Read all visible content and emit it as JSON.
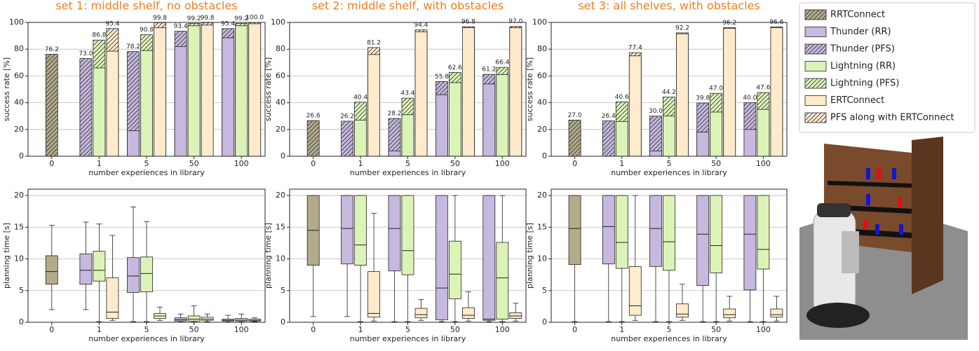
{
  "legend": [
    {
      "name": "RRTConnect",
      "color": "#b3ab8c",
      "hatch": true
    },
    {
      "name": "Thunder (RR)",
      "color": "#c6b8de",
      "hatch": false
    },
    {
      "name": "Thunder (PFS)",
      "color": "#c6b8de",
      "hatch": true
    },
    {
      "name": "Lightning (RR)",
      "color": "#dcf3b7",
      "hatch": false
    },
    {
      "name": "Lightning (PFS)",
      "color": "#dcf3b7",
      "hatch": true
    },
    {
      "name": "ERTConnect",
      "color": "#fdebcb",
      "hatch": false
    },
    {
      "name": "PFS along with ERTConnect",
      "color": "#fdebcb",
      "hatch": true
    }
  ],
  "chart_data": [
    {
      "type": "bar",
      "title": "set 1: middle shelf, no obstacles",
      "x_label": "number experiences in library",
      "y_label": "success rate [%]",
      "categories": [
        "0",
        "1",
        "5",
        "50",
        "100"
      ],
      "ylim": [
        0,
        100
      ],
      "yticks": [
        0,
        20,
        40,
        60,
        80,
        100
      ],
      "grid": true,
      "series": [
        {
          "values": [
            76.2,
            null,
            null,
            null,
            null
          ],
          "value_labels": [
            "76.2",
            null,
            null,
            null,
            null
          ]
        },
        {
          "values": [
            null,
            0,
            19,
            82,
            88.5
          ]
        },
        {
          "values": [
            null,
            73.0,
            78.2,
            93.4,
            95.4
          ],
          "value_labels": [
            null,
            "73.0",
            "78.2",
            "93.4",
            "95.4"
          ]
        },
        {
          "values": [
            null,
            66,
            79,
            97.5,
            97.5
          ]
        },
        {
          "values": [
            null,
            86.8,
            90.8,
            99.2,
            99.2
          ],
          "value_labels": [
            null,
            "86.8",
            "90.8",
            "99.2",
            "99.2"
          ]
        },
        {
          "values": [
            null,
            78.5,
            96,
            98,
            99
          ]
        },
        {
          "values": [
            null,
            95.4,
            99.8,
            99.8,
            100.0
          ],
          "value_labels": [
            null,
            "95.4",
            "99.8",
            "99.8",
            "100.0"
          ]
        }
      ]
    },
    {
      "type": "bar",
      "title": "set 2: middle shelf, with obstacles",
      "x_label": "number experiences in library",
      "y_label": "success rate [%]",
      "categories": [
        "0",
        "1",
        "5",
        "50",
        "100"
      ],
      "ylim": [
        0,
        100
      ],
      "yticks": [
        0,
        20,
        40,
        60,
        80,
        100
      ],
      "grid": true,
      "series": [
        {
          "values": [
            26.6,
            null,
            null,
            null,
            null
          ],
          "value_labels": [
            "26.6",
            null,
            null,
            null,
            null
          ]
        },
        {
          "values": [
            null,
            0,
            4,
            46,
            54
          ]
        },
        {
          "values": [
            null,
            26.2,
            28.2,
            55.8,
            61.2
          ],
          "value_labels": [
            null,
            "26.2",
            "28.2",
            "55.8",
            "61.2"
          ]
        },
        {
          "values": [
            null,
            27,
            31,
            55,
            61
          ]
        },
        {
          "values": [
            null,
            40.4,
            43.4,
            62.6,
            66.4
          ],
          "value_labels": [
            null,
            "40.4",
            "43.4",
            "62.6",
            "66.4"
          ]
        },
        {
          "values": [
            null,
            76,
            93,
            96,
            96
          ]
        },
        {
          "values": [
            null,
            81.2,
            94.4,
            96.8,
            97.0
          ],
          "value_labels": [
            null,
            "81.2",
            "94.4",
            "96.8",
            "97.0"
          ]
        }
      ]
    },
    {
      "type": "bar",
      "title": "set 3: all shelves, with obstacles",
      "x_label": "number experiences in library",
      "y_label": "success rate [%]",
      "categories": [
        "0",
        "1",
        "5",
        "50",
        "100"
      ],
      "ylim": [
        0,
        100
      ],
      "yticks": [
        0,
        20,
        40,
        60,
        80,
        100
      ],
      "grid": true,
      "series": [
        {
          "values": [
            27.0,
            null,
            null,
            null,
            null
          ],
          "value_labels": [
            "27.0",
            null,
            null,
            null,
            null
          ]
        },
        {
          "values": [
            null,
            0,
            4,
            18,
            20
          ]
        },
        {
          "values": [
            null,
            26.4,
            30.0,
            39.8,
            40.0
          ],
          "value_labels": [
            null,
            "26.4",
            "30.0",
            "39.8",
            "40.0"
          ]
        },
        {
          "values": [
            null,
            26,
            30,
            33,
            35
          ]
        },
        {
          "values": [
            null,
            40.6,
            44.2,
            47.0,
            47.6
          ],
          "value_labels": [
            null,
            "40.6",
            "44.2",
            "47.0",
            "47.6"
          ]
        },
        {
          "values": [
            null,
            75,
            91.5,
            95.5,
            96
          ]
        },
        {
          "values": [
            null,
            77.4,
            92.2,
            96.2,
            96.6
          ],
          "value_labels": [
            null,
            "77.4",
            "92.2",
            "96.2",
            "96.6"
          ]
        }
      ]
    },
    {
      "type": "box",
      "x_label": "number experiences in library",
      "y_label": "planning time [s]",
      "categories": [
        "0",
        "1",
        "5",
        "50",
        "100"
      ],
      "ylim": [
        0,
        21
      ],
      "yticks": [
        0,
        5,
        10,
        15,
        20
      ],
      "grid": true,
      "series": [
        {
          "color": "#b3ab8c",
          "values": [
            [
              2,
              6,
              8,
              10.5,
              15.3
            ],
            null,
            null,
            null,
            null
          ]
        },
        {
          "color": "#c6b8de",
          "values": [
            null,
            [
              2,
              6,
              8.2,
              10.8,
              15.8
            ],
            [
              0.1,
              4.7,
              7.3,
              10.2,
              18.2
            ],
            [
              0.05,
              0.2,
              0.4,
              0.7,
              1.3
            ],
            [
              0.05,
              0.2,
              0.3,
              0.5,
              1.1
            ]
          ]
        },
        {
          "color": "#dcf3b7",
          "values": [
            null,
            [
              0.1,
              6.5,
              8.2,
              11.2,
              15.5
            ],
            [
              0.1,
              4.8,
              7.7,
              10.3,
              15.9
            ],
            [
              0.05,
              0.2,
              0.5,
              1.0,
              2.6
            ],
            [
              0.05,
              0.2,
              0.35,
              0.6,
              1.3
            ]
          ]
        },
        {
          "color": "#fdebcb",
          "values": [
            null,
            [
              0.3,
              0.6,
              1.6,
              7,
              13.7
            ],
            [
              0.3,
              0.6,
              1.0,
              1.4,
              2.4
            ],
            [
              0.1,
              0.3,
              0.5,
              0.8,
              1.3
            ],
            [
              0.1,
              0.2,
              0.3,
              0.5,
              0.7
            ]
          ]
        }
      ]
    },
    {
      "type": "box",
      "x_label": "number experiences in library",
      "y_label": "planning time [s]",
      "categories": [
        "0",
        "1",
        "5",
        "50",
        "100"
      ],
      "ylim": [
        0,
        21
      ],
      "yticks": [
        0,
        5,
        10,
        15,
        20
      ],
      "grid": true,
      "series": [
        {
          "color": "#b3ab8c",
          "values": [
            [
              0.9,
              9,
              14.5,
              20,
              20
            ],
            null,
            null,
            null,
            null
          ]
        },
        {
          "color": "#c6b8de",
          "values": [
            null,
            [
              0.9,
              9.2,
              14.8,
              20,
              20
            ],
            [
              0.1,
              8.1,
              14.8,
              20,
              20
            ],
            [
              0.1,
              0.4,
              5.4,
              20,
              20
            ],
            [
              0.1,
              0.3,
              0.5,
              20,
              20
            ]
          ]
        },
        {
          "color": "#dcf3b7",
          "values": [
            null,
            [
              0.1,
              9,
              12.2,
              20,
              20
            ],
            [
              0.1,
              7.5,
              11.3,
              20,
              20
            ],
            [
              0.1,
              3.7,
              7.6,
              12.8,
              20
            ],
            [
              0.1,
              0.5,
              7,
              12.6,
              20
            ]
          ]
        },
        {
          "color": "#fdebcb",
          "values": [
            null,
            [
              0.2,
              0.8,
              1.4,
              8,
              17.2
            ],
            [
              0.3,
              0.7,
              1.2,
              2.2,
              3.6
            ],
            [
              0.2,
              0.6,
              1.1,
              2.3,
              4.8
            ],
            [
              0.2,
              0.6,
              1.0,
              1.5,
              3.0
            ]
          ]
        }
      ]
    },
    {
      "type": "box",
      "x_label": "number experiences in library",
      "y_label": "planning time [s]",
      "categories": [
        "0",
        "1",
        "5",
        "50",
        "100"
      ],
      "ylim": [
        0,
        21
      ],
      "yticks": [
        0,
        5,
        10,
        15,
        20
      ],
      "grid": true,
      "series": [
        {
          "color": "#b3ab8c",
          "values": [
            [
              0.1,
              9.1,
              14.8,
              20,
              20
            ],
            null,
            null,
            null,
            null
          ]
        },
        {
          "color": "#c6b8de",
          "values": [
            null,
            [
              0.1,
              9.2,
              15.1,
              20,
              20
            ],
            [
              0.1,
              8.8,
              14.8,
              20,
              20
            ],
            [
              0.1,
              5.8,
              13.9,
              20,
              20
            ],
            [
              0.1,
              5.1,
              13.9,
              20,
              20
            ]
          ]
        },
        {
          "color": "#dcf3b7",
          "values": [
            null,
            [
              0.1,
              8.5,
              12.6,
              20,
              20
            ],
            [
              0.1,
              8.2,
              12.7,
              20,
              20
            ],
            [
              0.1,
              7.8,
              12.1,
              20,
              20
            ],
            [
              0.1,
              8.4,
              11.5,
              20,
              20
            ]
          ]
        },
        {
          "color": "#fdebcb",
          "values": [
            null,
            [
              0.3,
              1.1,
              2.6,
              8.8,
              20
            ],
            [
              0.3,
              0.8,
              1.3,
              2.9,
              6
            ],
            [
              0.2,
              0.7,
              1.2,
              2.1,
              4.1
            ],
            [
              0.2,
              0.8,
              1.2,
              2.1,
              4.1
            ]
          ]
        }
      ]
    }
  ]
}
